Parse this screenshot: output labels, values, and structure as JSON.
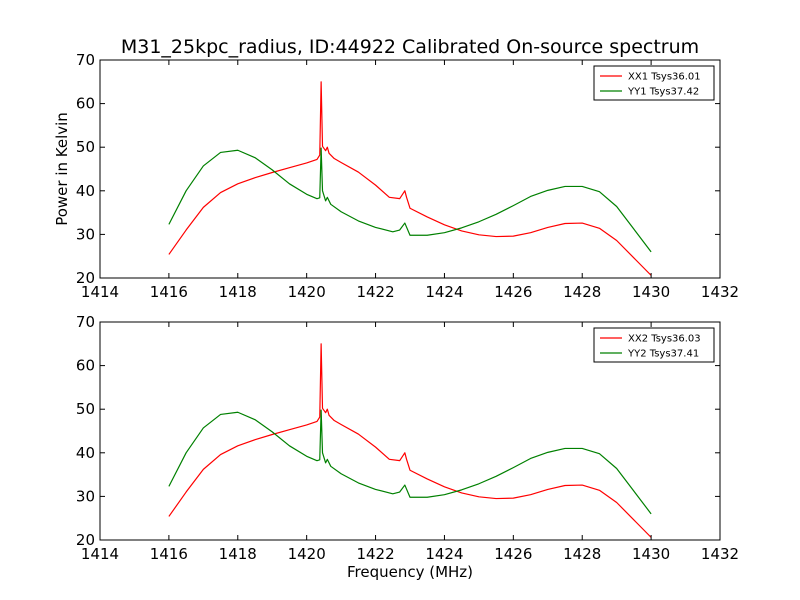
{
  "chart_data": [
    {
      "type": "line",
      "title": "M31_25kpc_radius, ID:44922 Calibrated On-source spectrum",
      "xlabel": "",
      "ylabel": "Power in Kelvin",
      "xlim": [
        1414,
        1432
      ],
      "ylim": [
        20,
        70
      ],
      "xticks": [
        1414,
        1416,
        1418,
        1420,
        1422,
        1424,
        1426,
        1428,
        1430,
        1432
      ],
      "yticks": [
        20,
        30,
        40,
        50,
        60,
        70
      ],
      "grid": false,
      "legend_position": "top-right",
      "series": [
        {
          "name": "XX1 Tsys36.01",
          "color": "#ff0000",
          "x": [
            1416.0,
            1416.5,
            1417.0,
            1417.5,
            1418.0,
            1418.5,
            1419.0,
            1419.5,
            1420.0,
            1420.3,
            1420.38,
            1420.42,
            1420.46,
            1420.55,
            1420.6,
            1420.65,
            1420.8,
            1421.0,
            1421.5,
            1422.0,
            1422.4,
            1422.7,
            1422.85,
            1422.9,
            1423.0,
            1423.5,
            1424.0,
            1424.5,
            1425.0,
            1425.5,
            1426.0,
            1426.5,
            1427.0,
            1427.5,
            1428.0,
            1428.5,
            1429.0,
            1429.5,
            1430.0
          ],
          "y": [
            25.4,
            31.0,
            36.2,
            39.6,
            41.6,
            43.0,
            44.2,
            45.3,
            46.4,
            47.2,
            48.2,
            65.0,
            50.2,
            49.2,
            50.0,
            48.6,
            47.4,
            46.5,
            44.3,
            41.3,
            38.5,
            38.2,
            40.0,
            38.5,
            36.0,
            34.0,
            32.2,
            30.8,
            29.9,
            29.5,
            29.6,
            30.4,
            31.6,
            32.5,
            32.6,
            31.4,
            28.6,
            24.6,
            20.6
          ]
        },
        {
          "name": "YY1 Tsys37.42",
          "color": "#008000",
          "x": [
            1416.0,
            1416.5,
            1417.0,
            1417.5,
            1418.0,
            1418.5,
            1419.0,
            1419.5,
            1420.0,
            1420.3,
            1420.38,
            1420.42,
            1420.46,
            1420.55,
            1420.6,
            1420.7,
            1421.0,
            1421.5,
            1422.0,
            1422.5,
            1422.7,
            1422.85,
            1423.0,
            1423.5,
            1424.0,
            1424.5,
            1425.0,
            1425.5,
            1426.0,
            1426.5,
            1427.0,
            1427.5,
            1428.0,
            1428.5,
            1429.0,
            1429.5,
            1430.0
          ],
          "y": [
            32.3,
            40.0,
            45.7,
            48.8,
            49.3,
            47.6,
            44.8,
            41.6,
            39.2,
            38.2,
            38.4,
            49.8,
            40.0,
            37.7,
            38.5,
            36.9,
            35.2,
            33.1,
            31.6,
            30.6,
            31.0,
            32.6,
            29.8,
            29.8,
            30.4,
            31.5,
            32.9,
            34.6,
            36.6,
            38.7,
            40.1,
            41.0,
            41.0,
            39.8,
            36.4,
            31.2,
            26.0
          ]
        }
      ]
    },
    {
      "type": "line",
      "title": "",
      "xlabel": "Frequency (MHz)",
      "ylabel": "",
      "xlim": [
        1414,
        1432
      ],
      "ylim": [
        20,
        70
      ],
      "xticks": [
        1414,
        1416,
        1418,
        1420,
        1422,
        1424,
        1426,
        1428,
        1430,
        1432
      ],
      "yticks": [
        20,
        30,
        40,
        50,
        60,
        70
      ],
      "grid": false,
      "legend_position": "top-right",
      "series": [
        {
          "name": "XX2 Tsys36.03",
          "color": "#ff0000",
          "x": [
            1416.0,
            1416.5,
            1417.0,
            1417.5,
            1418.0,
            1418.5,
            1419.0,
            1419.5,
            1420.0,
            1420.3,
            1420.38,
            1420.42,
            1420.46,
            1420.55,
            1420.6,
            1420.65,
            1420.8,
            1421.0,
            1421.5,
            1422.0,
            1422.4,
            1422.7,
            1422.85,
            1422.9,
            1423.0,
            1423.5,
            1424.0,
            1424.5,
            1425.0,
            1425.5,
            1426.0,
            1426.5,
            1427.0,
            1427.5,
            1428.0,
            1428.5,
            1429.0,
            1429.5,
            1430.0
          ],
          "y": [
            25.4,
            31.0,
            36.2,
            39.6,
            41.6,
            43.0,
            44.2,
            45.3,
            46.4,
            47.2,
            48.2,
            65.0,
            50.2,
            49.2,
            50.0,
            48.6,
            47.4,
            46.5,
            44.3,
            41.3,
            38.5,
            38.2,
            40.0,
            38.5,
            36.0,
            34.0,
            32.2,
            30.8,
            29.9,
            29.5,
            29.6,
            30.4,
            31.6,
            32.5,
            32.6,
            31.4,
            28.6,
            24.6,
            20.6
          ]
        },
        {
          "name": "YY2 Tsys37.41",
          "color": "#008000",
          "x": [
            1416.0,
            1416.5,
            1417.0,
            1417.5,
            1418.0,
            1418.5,
            1419.0,
            1419.5,
            1420.0,
            1420.3,
            1420.38,
            1420.42,
            1420.46,
            1420.55,
            1420.6,
            1420.7,
            1421.0,
            1421.5,
            1422.0,
            1422.5,
            1422.7,
            1422.85,
            1423.0,
            1423.5,
            1424.0,
            1424.5,
            1425.0,
            1425.5,
            1426.0,
            1426.5,
            1427.0,
            1427.5,
            1428.0,
            1428.5,
            1429.0,
            1429.5,
            1430.0
          ],
          "y": [
            32.3,
            40.0,
            45.7,
            48.8,
            49.3,
            47.6,
            44.8,
            41.6,
            39.2,
            38.2,
            38.4,
            49.8,
            40.0,
            37.7,
            38.5,
            36.9,
            35.2,
            33.1,
            31.6,
            30.6,
            31.0,
            32.6,
            29.8,
            29.8,
            30.4,
            31.5,
            32.9,
            34.6,
            36.6,
            38.7,
            40.1,
            41.0,
            41.0,
            39.8,
            36.4,
            31.2,
            26.0
          ]
        }
      ]
    }
  ]
}
